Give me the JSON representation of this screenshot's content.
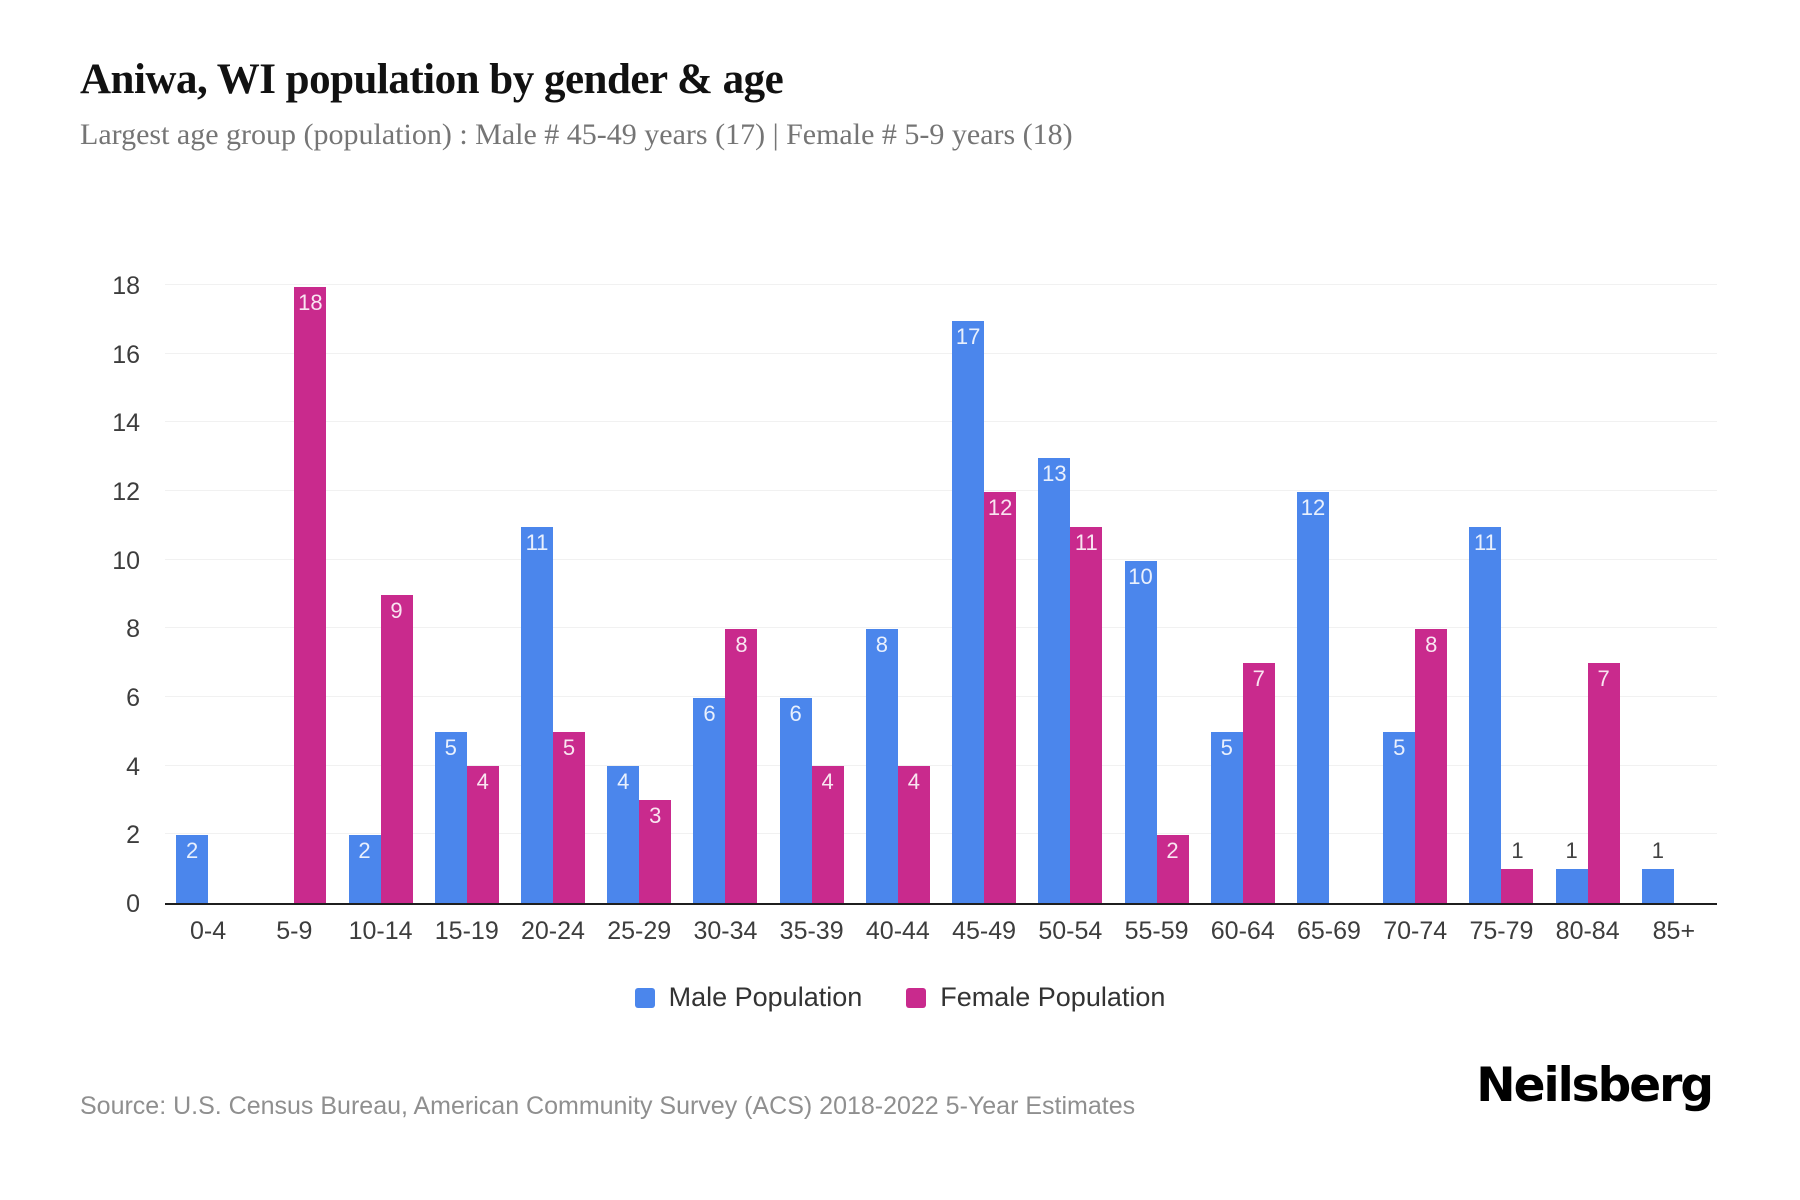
{
  "header": {
    "title": "Aniwa, WI population by gender & age",
    "subtitle": "Largest age group (population) : Male # 45-49 years (17) | Female # 5-9 years (18)"
  },
  "chart_data": {
    "type": "bar",
    "title": "Aniwa, WI population by gender & age",
    "categories": [
      "0-4",
      "5-9",
      "10-14",
      "15-19",
      "20-24",
      "25-29",
      "30-34",
      "35-39",
      "40-44",
      "45-49",
      "50-54",
      "55-59",
      "60-64",
      "65-69",
      "70-74",
      "75-79",
      "80-84",
      "85+"
    ],
    "series": [
      {
        "name": "Male Population",
        "color": "#4b86ec",
        "values": [
          2,
          0,
          2,
          5,
          11,
          4,
          6,
          6,
          8,
          17,
          13,
          10,
          5,
          12,
          5,
          11,
          1,
          1
        ]
      },
      {
        "name": "Female Population",
        "color": "#c92a8d",
        "values": [
          0,
          18,
          9,
          4,
          5,
          3,
          8,
          4,
          4,
          12,
          11,
          2,
          7,
          0,
          8,
          1,
          7,
          0
        ]
      }
    ],
    "xlabel": "",
    "ylabel": "",
    "ylim": [
      0,
      18
    ],
    "yticks": [
      0,
      2,
      4,
      6,
      8,
      10,
      12,
      14,
      16,
      18
    ],
    "grid": "horizontal",
    "legend_position": "bottom",
    "bar_value_labels": "inside-top-white; values of 1 shown above bar in dark gray"
  },
  "footer": {
    "source": "Source: U.S. Census Bureau, American Community Survey (ACS) 2018-2022 5-Year Estimates",
    "brand": "Neilsberg"
  }
}
